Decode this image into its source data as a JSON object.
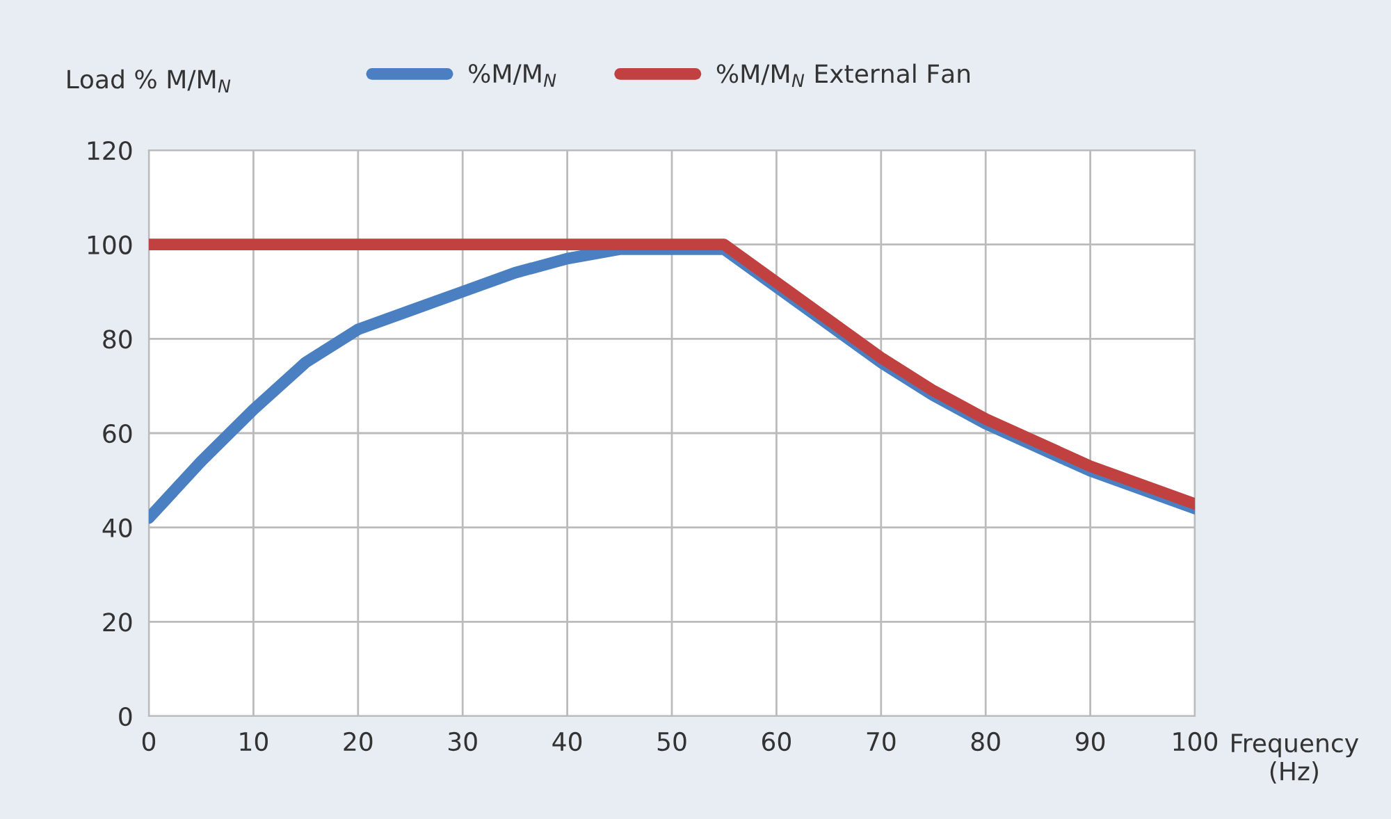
{
  "chart_data": {
    "type": "line",
    "ylabel": "Load % M/M$_{N}$",
    "xlabel": "Frequency\n(Hz)",
    "xlim": [
      0,
      100
    ],
    "xticks": [
      0,
      10,
      20,
      30,
      40,
      50,
      60,
      70,
      80,
      90,
      100
    ],
    "ylim": [
      0,
      120
    ],
    "yticks": [
      0,
      20,
      40,
      60,
      80,
      100,
      120
    ],
    "grid": true,
    "legend": "top",
    "marker": "none",
    "line_style": "solid",
    "series": [
      {
        "name": "%M/M$_{N}$",
        "color": "#4a7fc1",
        "x": [
          0,
          5,
          10,
          15,
          20,
          25,
          30,
          35,
          40,
          45,
          50,
          55,
          60,
          70,
          75,
          80,
          90,
          100
        ],
        "values": [
          42,
          54,
          65,
          75,
          82,
          86,
          90,
          94,
          97,
          99,
          99,
          99,
          91,
          75,
          68,
          62,
          52,
          44
        ]
      },
      {
        "name": "%M/M$_{N}$ External Fan",
        "color": "#c0413f",
        "x": [
          0,
          5,
          10,
          15,
          20,
          25,
          30,
          35,
          40,
          45,
          50,
          55,
          60,
          70,
          75,
          80,
          90,
          100
        ],
        "values": [
          100,
          100,
          100,
          100,
          100,
          100,
          100,
          100,
          100,
          100,
          100,
          100,
          92,
          76,
          69,
          63,
          53,
          45
        ]
      }
    ]
  }
}
